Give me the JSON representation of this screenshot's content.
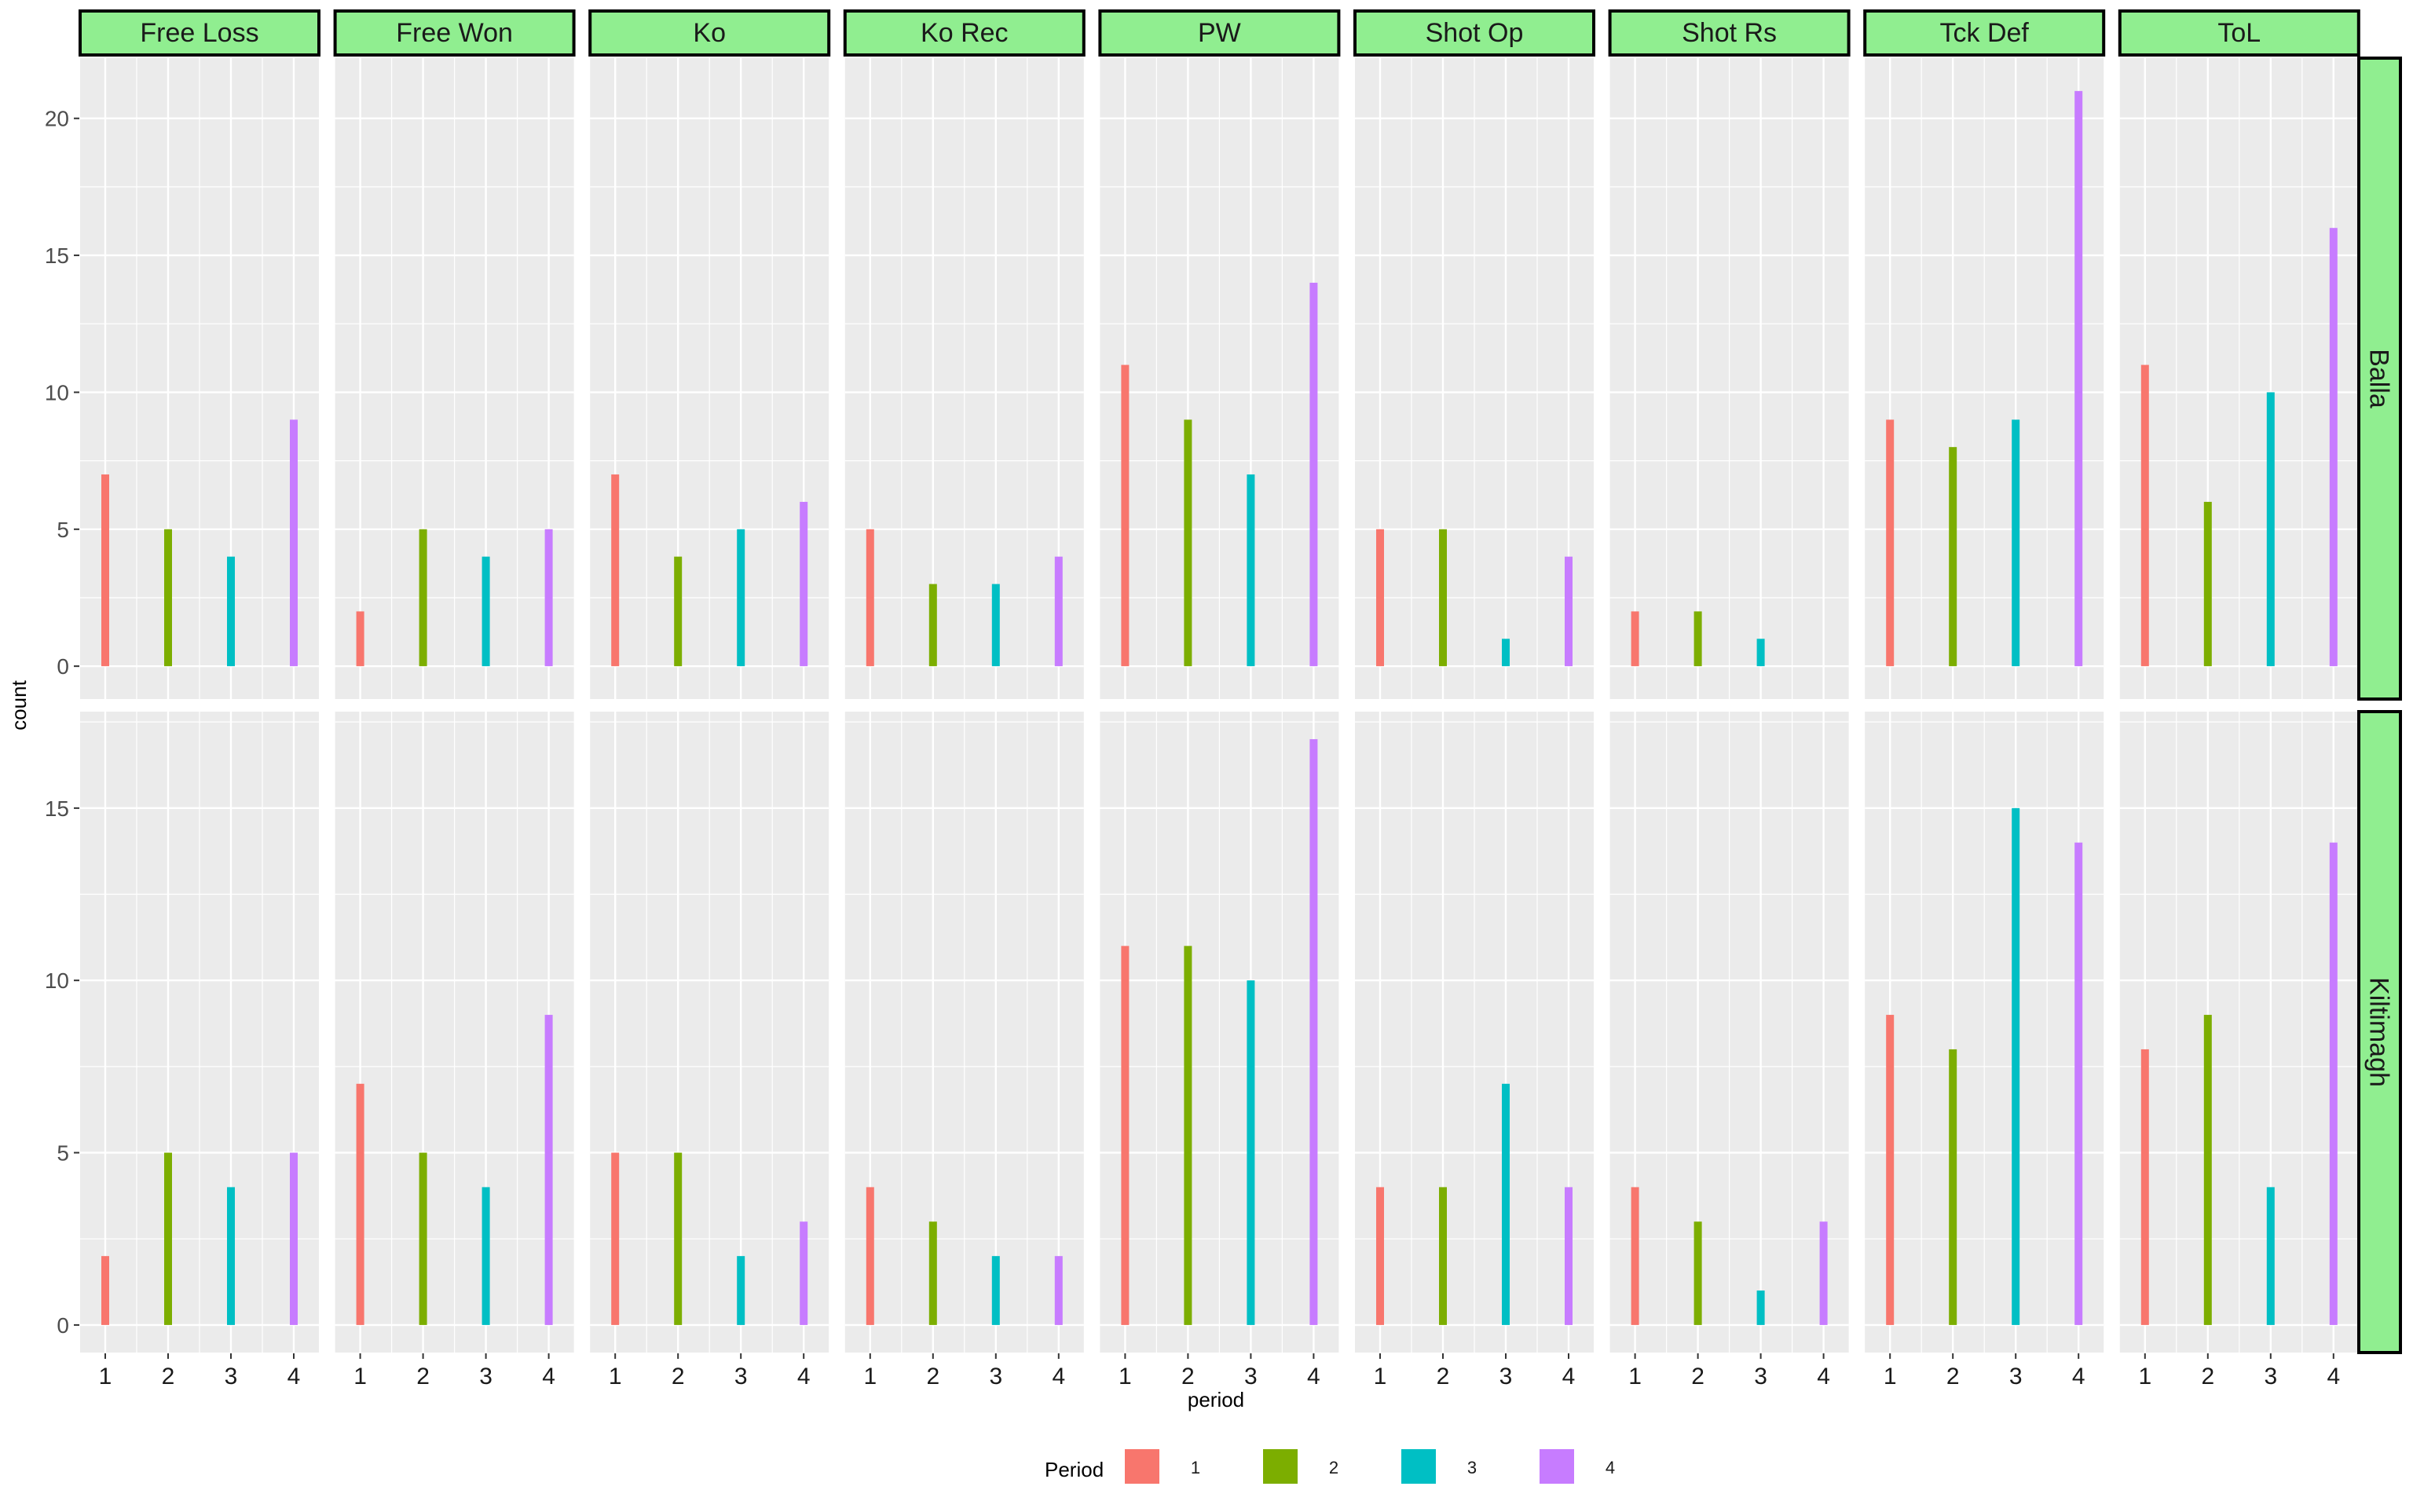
{
  "chart_data": {
    "type": "bar",
    "facet_columns": [
      "Free Loss",
      "Free Won",
      "Ko",
      "Ko Rec",
      "PW",
      "Shot Op",
      "Shot Rs",
      "Tck Def",
      "ToL"
    ],
    "facet_rows": [
      "Balla",
      "Kiltimagh"
    ],
    "categories": [
      "1",
      "2",
      "3",
      "4"
    ],
    "xlabel": "period",
    "ylabel": "count",
    "legend": {
      "title": "Period",
      "position": "bottom",
      "items": [
        {
          "label": "1",
          "color": "#F8766D"
        },
        {
          "label": "2",
          "color": "#7CAE00"
        },
        {
          "label": "3",
          "color": "#00BFC4"
        },
        {
          "label": "4",
          "color": "#C77CFF"
        }
      ]
    },
    "rows": [
      {
        "name": "Balla",
        "ylim": [
          -1.2,
          22.2
        ],
        "yticks": [
          0,
          5,
          10,
          15,
          20
        ],
        "panels": [
          {
            "facet": "Free Loss",
            "values": [
              7,
              5,
              4,
              9
            ]
          },
          {
            "facet": "Free Won",
            "values": [
              2,
              5,
              4,
              5
            ]
          },
          {
            "facet": "Ko",
            "values": [
              7,
              4,
              5,
              6
            ]
          },
          {
            "facet": "Ko Rec",
            "values": [
              5,
              3,
              3,
              4
            ]
          },
          {
            "facet": "PW",
            "values": [
              11,
              9,
              7,
              14
            ]
          },
          {
            "facet": "Shot Op",
            "values": [
              5,
              5,
              1,
              4
            ]
          },
          {
            "facet": "Shot Rs",
            "values": [
              2,
              2,
              1,
              null
            ]
          },
          {
            "facet": "Tck Def",
            "values": [
              9,
              8,
              9,
              21
            ]
          },
          {
            "facet": "ToL",
            "values": [
              11,
              6,
              10,
              16
            ]
          }
        ]
      },
      {
        "name": "Kiltimagh",
        "ylim": [
          -0.8,
          17.8
        ],
        "yticks": [
          0,
          5,
          10,
          15
        ],
        "panels": [
          {
            "facet": "Free Loss",
            "values": [
              2,
              5,
              4,
              5
            ]
          },
          {
            "facet": "Free Won",
            "values": [
              7,
              5,
              4,
              9
            ]
          },
          {
            "facet": "Ko",
            "values": [
              5,
              5,
              2,
              3
            ]
          },
          {
            "facet": "Ko Rec",
            "values": [
              4,
              3,
              2,
              2
            ]
          },
          {
            "facet": "PW",
            "values": [
              11,
              11,
              10,
              17
            ]
          },
          {
            "facet": "Shot Op",
            "values": [
              4,
              4,
              7,
              4
            ]
          },
          {
            "facet": "Shot Rs",
            "values": [
              4,
              3,
              1,
              3
            ]
          },
          {
            "facet": "Tck Def",
            "values": [
              9,
              8,
              15,
              14
            ]
          },
          {
            "facet": "ToL",
            "values": [
              8,
              9,
              4,
              14
            ]
          }
        ]
      }
    ],
    "grid": true,
    "colors": {
      "panel_background": "#EBEBEB",
      "grid_line": "#FFFFFF",
      "strip_fill": "#90EE90",
      "strip_border": "#000000"
    }
  }
}
